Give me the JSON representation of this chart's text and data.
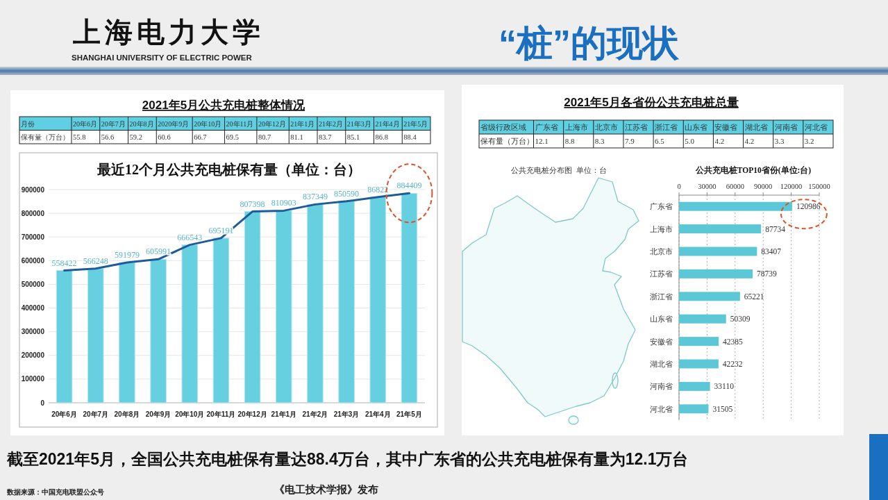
{
  "chart_data": [
    {
      "type": "other",
      "title": "“桩”的现状",
      "annotations": [
        "上海电力大学",
        "SHANGHAI UNIVERSITY OF ELECTRIC POWER",
        "截至2021年5月，全国公共充电桩保有量达88.4万台，其中广东省的公共充电桩保有量为12.1万台",
        "数据来源：中国充电联盟公众号",
        "《电工技术学报》发布"
      ]
    },
    {
      "type": "other",
      "title": "2021年5月公共充电桩整体情况",
      "xlabel": "月份",
      "ylabel": "保有量（万台）",
      "categories": [
        "20年6月",
        "20年7月",
        "20年8月",
        "2020年9月",
        "20年10月",
        "20年11月",
        "20年12月",
        "21年1月",
        "21年2月",
        "21年3月",
        "21年4月",
        "21年5月"
      ],
      "values": [
        55.8,
        56.6,
        59.2,
        60.6,
        66.7,
        69.5,
        80.7,
        81.1,
        83.7,
        85.1,
        86.8,
        88.4
      ],
      "value_labels": [
        "55.8",
        "56.6",
        "59.2",
        "60.6",
        "66.7",
        "69.5",
        "80.7",
        "81.1",
        "83.7",
        "85.1",
        "86.8",
        "88.4"
      ]
    },
    {
      "type": "bar",
      "title": "最近12个月公共充电桩保有量（单位：台）",
      "categories": [
        "20年6月",
        "20年7月",
        "20年8月",
        "20年9月",
        "20年10月",
        "20年11月",
        "20年12月",
        "21年1月",
        "21年2月",
        "21年3月",
        "21年4月",
        "21年5月"
      ],
      "series": [
        {
          "type": "bar",
          "color": "#66cfe0",
          "values": [
            558422,
            566248,
            591979,
            605991,
            666543,
            695191,
            807398,
            810903,
            837349,
            850590,
            868220,
            884409
          ],
          "value_labels": [
            "558422",
            "566248",
            "591979",
            "605991",
            "666543",
            "695191",
            "807398",
            "810903",
            "837349",
            "850590",
            null,
            "884409"
          ]
        },
        {
          "type": "line",
          "color": "#1d5c99",
          "values": [
            558422,
            566248,
            591979,
            605991,
            666543,
            695191,
            807398,
            810903,
            837349,
            850590,
            868220,
            884409
          ]
        }
      ],
      "annotations": [
        {
          "text": "86822",
          "x": "21年4月",
          "y": 868220
        }
      ],
      "ylim": [
        0,
        900000
      ],
      "yticks": [
        0,
        100000,
        200000,
        300000,
        400000,
        500000,
        600000,
        700000,
        800000,
        900000
      ],
      "grid": "y"
    },
    {
      "type": "other",
      "title": "2021年5月各省份公共充电桩总量",
      "xlabel": "省级行政区域",
      "ylabel": "保有量（万台）",
      "categories": [
        "广东省",
        "上海市",
        "北京市",
        "江苏省",
        "浙江省",
        "山东省",
        "安徽省",
        "湖北省",
        "河南省",
        "河北省"
      ],
      "values": [
        12.1,
        8.8,
        8.3,
        7.9,
        6.5,
        5.0,
        4.2,
        4.2,
        3.3,
        3.2
      ],
      "value_labels": [
        "12.1",
        "8.8",
        "8.3",
        "7.9",
        "6.5",
        "5.0",
        "4.2",
        "4.2",
        "3.3",
        "3.2"
      ]
    },
    {
      "type": "bar",
      "orientation": "horizontal",
      "title": "公共充电桩TOP10省份(单位:台)",
      "annotations": [
        "公共充电桩分布图  单位：台"
      ],
      "categories": [
        "广东省",
        "上海市",
        "北京市",
        "江苏省",
        "浙江省",
        "山东省",
        "安徽省",
        "湖北省",
        "河南省",
        "河北省"
      ],
      "values": [
        120986,
        87734,
        83407,
        78739,
        65221,
        50309,
        42385,
        42232,
        33110,
        31505
      ],
      "color": "#5cc8d7",
      "xlim": [
        0,
        150000
      ],
      "xticks": [
        0,
        30000,
        60000,
        90000,
        120000,
        150000
      ],
      "grid": "x",
      "data_labels": true
    }
  ]
}
